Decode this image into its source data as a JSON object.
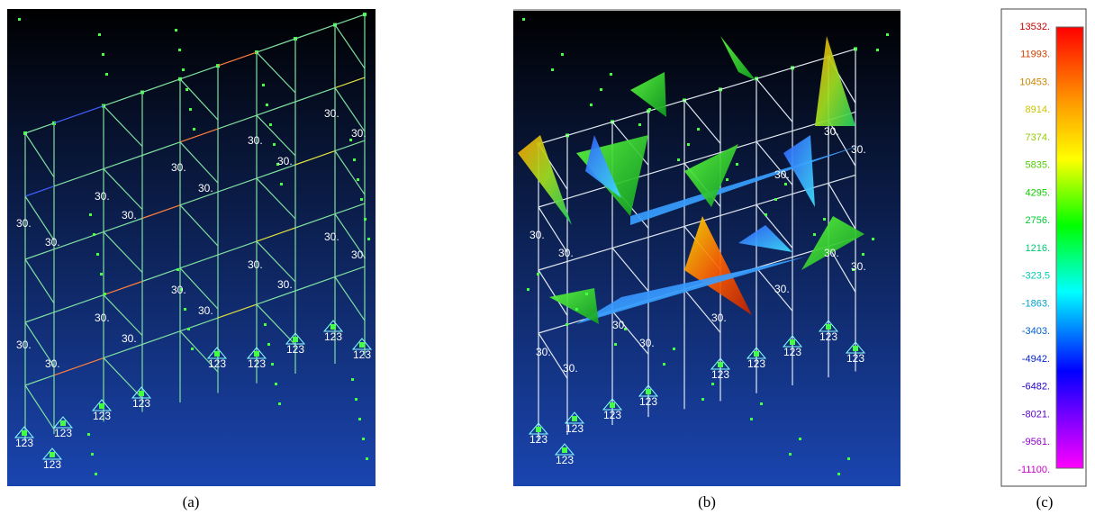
{
  "panel_a": {
    "labels": [
      "30.",
      "30.",
      "30.",
      "30.",
      "30.",
      "30.",
      "30.",
      "30.",
      "30.",
      "30.",
      "30.",
      "30.",
      "30.",
      "30.",
      "30.",
      "30.",
      "30.",
      "30.",
      "30.",
      "30.",
      "123",
      "123",
      "123",
      "123",
      "123",
      "123",
      "123",
      "123",
      "123",
      "123"
    ]
  },
  "panel_b": {
    "labels": [
      "30.",
      "30.",
      "30.",
      "30.",
      "30.",
      "30.",
      "30.",
      "30.",
      "30.",
      "30.",
      "30.",
      "30.",
      "30.",
      "123",
      "123",
      "123",
      "123",
      "123",
      "123",
      "123",
      "123",
      "123",
      "123"
    ]
  },
  "legend": {
    "labels": [
      "13532.",
      "11993.",
      "10453.",
      "8914.",
      "7374.",
      "5835.",
      "4295.",
      "2756.",
      "1216.",
      "-323.5",
      "-1863.",
      "-3403.",
      "-4942.",
      "-6482.",
      "-8021.",
      "-9561.",
      "-11100."
    ]
  },
  "captions": [
    "(a)",
    "(b)",
    "(c)"
  ]
}
